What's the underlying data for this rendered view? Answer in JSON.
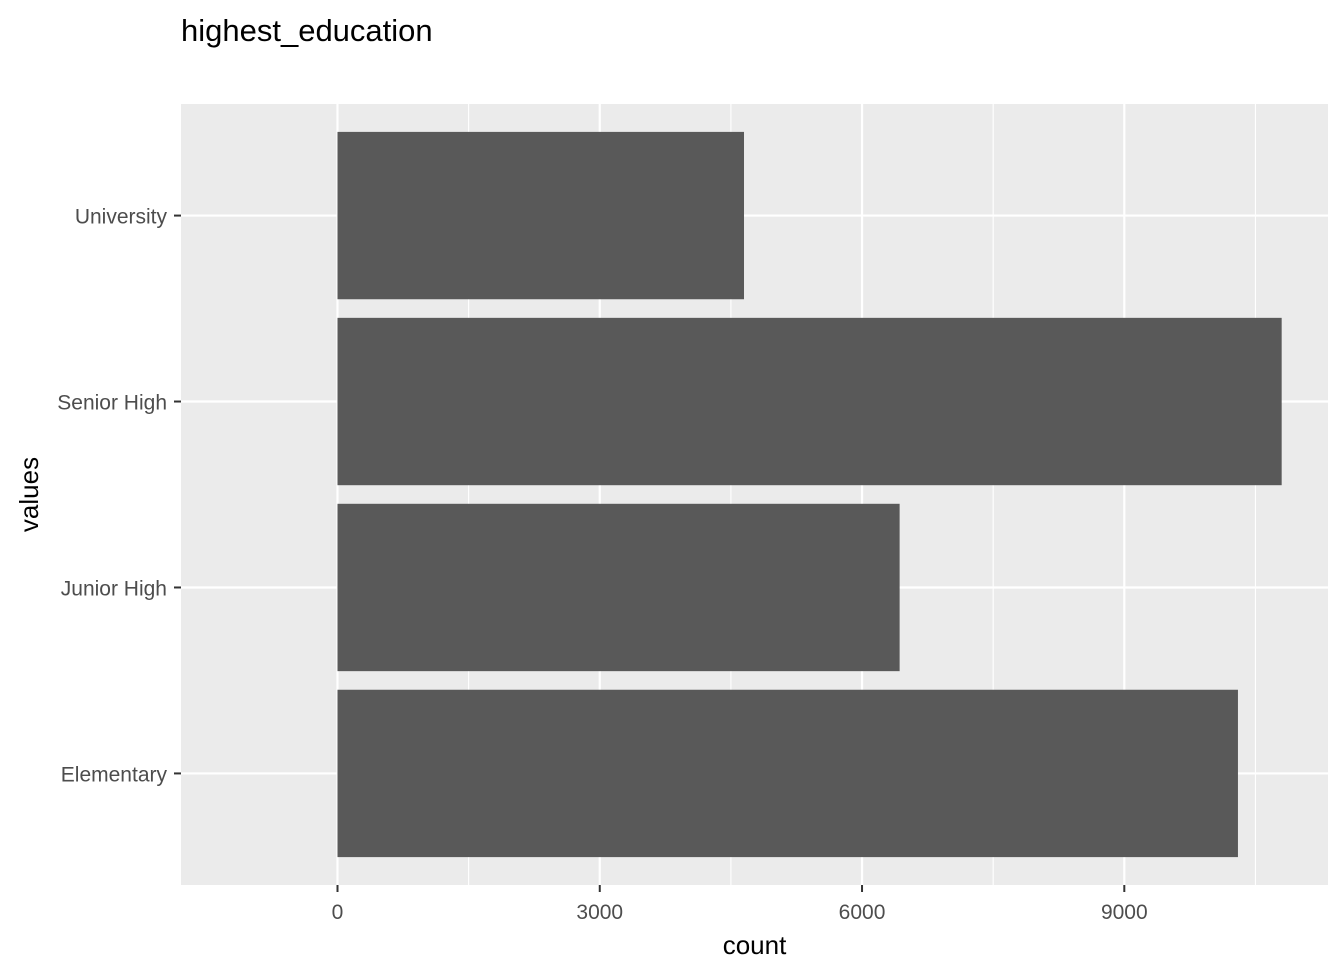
{
  "chart_data": {
    "type": "bar",
    "orientation": "horizontal",
    "title": "highest_education",
    "xlabel": "count",
    "ylabel": "values",
    "categories": [
      "Elementary",
      "Junior High",
      "Senior High",
      "University"
    ],
    "values": [
      10300,
      6430,
      10800,
      4650
    ],
    "xlim": [
      -1790,
      11330
    ],
    "xticks": [
      0,
      3000,
      6000,
      9000
    ],
    "xtick_labels": [
      "0",
      "3000",
      "6000",
      "9000"
    ],
    "x_minor_gridlines": [
      1500,
      4500,
      7500,
      10500
    ],
    "grid": true,
    "legend": "none",
    "colors": {
      "bar": "#595959",
      "panel_background": "#EBEBEB",
      "gridline": "#FFFFFF",
      "axis_text": "#4D4D4D",
      "axis_title": "#000000",
      "tick": "#333333"
    }
  }
}
